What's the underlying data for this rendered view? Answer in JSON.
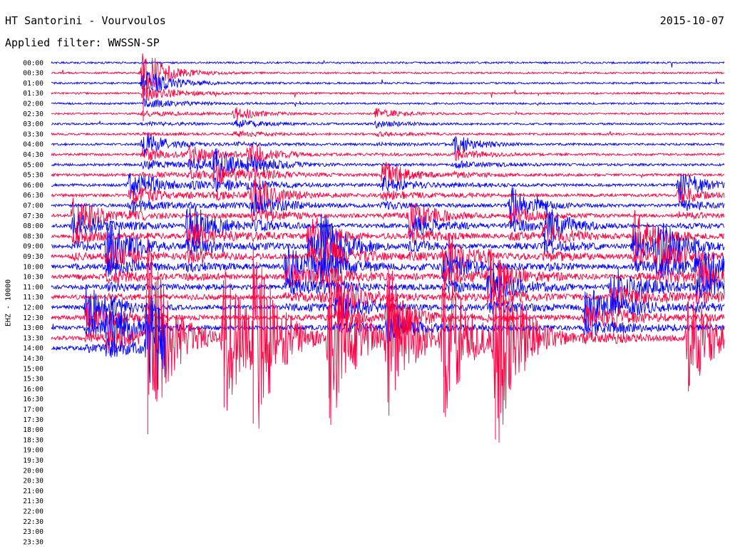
{
  "header": {
    "station": "HT Santorini - Vourvoulos",
    "date": "2015-10-07",
    "filter_text": "Applied filter: WWSSN-SP",
    "channel_label": "EHZ - 10000"
  },
  "colors": {
    "even_row": "#0000ff",
    "odd_row": "#ff0040",
    "text": "#000000",
    "background": "#ffffff"
  },
  "chart_data": {
    "type": "line",
    "title": "HT Santorini - Vourvoulos",
    "subtitle": "Applied filter: WWSSN-SP",
    "ylabel": "EHZ - 10000",
    "row_labels": [
      "00:00",
      "00:30",
      "01:00",
      "01:30",
      "02:00",
      "02:30",
      "03:00",
      "03:30",
      "04:00",
      "04:30",
      "05:00",
      "05:30",
      "06:00",
      "06:30",
      "07:00",
      "07:30",
      "08:00",
      "08:30",
      "09:00",
      "09:30",
      "10:00",
      "10:30",
      "11:00",
      "11:30",
      "12:00",
      "12:30",
      "13:00",
      "13:30",
      "14:00",
      "14:30",
      "15:00",
      "15:30",
      "16:00",
      "16:30",
      "17:00",
      "17:30",
      "18:00",
      "18:30",
      "19:00",
      "19:30",
      "20:00",
      "20:30",
      "21:00",
      "21:30",
      "22:00",
      "22:30",
      "23:00",
      "23:30"
    ],
    "row_minutes": 30,
    "rows_with_data": 29,
    "last_row_fraction": 0.17,
    "events": [
      {
        "row": 1,
        "minute": 4.1,
        "amplitude": 4.5
      },
      {
        "row": 5,
        "minute": 8.2,
        "amplitude": 1.2
      },
      {
        "row": 5,
        "minute": 14.5,
        "amplitude": 1.0
      },
      {
        "row": 8,
        "minute": 4.1,
        "amplitude": 1.8
      },
      {
        "row": 8,
        "minute": 18.0,
        "amplitude": 1.4
      },
      {
        "row": 9,
        "minute": 6.2,
        "amplitude": 1.5
      },
      {
        "row": 9,
        "minute": 8.8,
        "amplitude": 1.6
      },
      {
        "row": 10,
        "minute": 7.3,
        "amplitude": 2.0
      },
      {
        "row": 11,
        "minute": 14.8,
        "amplitude": 1.8
      },
      {
        "row": 12,
        "minute": 3.5,
        "amplitude": 2.0
      },
      {
        "row": 12,
        "minute": 28.0,
        "amplitude": 1.9
      },
      {
        "row": 13,
        "minute": 9.0,
        "amplitude": 2.2
      },
      {
        "row": 14,
        "minute": 20.5,
        "amplitude": 2.0
      },
      {
        "row": 15,
        "minute": 1.0,
        "amplitude": 2.5
      },
      {
        "row": 15,
        "minute": 16.0,
        "amplitude": 2.2
      },
      {
        "row": 16,
        "minute": 6.1,
        "amplitude": 2.6
      },
      {
        "row": 16,
        "minute": 22.0,
        "amplitude": 2.1
      },
      {
        "row": 17,
        "minute": 11.5,
        "amplitude": 2.3
      },
      {
        "row": 17,
        "minute": 26.0,
        "amplitude": 2.4
      },
      {
        "row": 18,
        "minute": 2.5,
        "amplitude": 2.8
      },
      {
        "row": 18,
        "minute": 12.0,
        "amplitude": 2.6
      },
      {
        "row": 18,
        "minute": 27.0,
        "amplitude": 2.5
      },
      {
        "row": 19,
        "minute": 17.5,
        "amplitude": 2.4
      },
      {
        "row": 20,
        "minute": 10.5,
        "amplitude": 2.1
      },
      {
        "row": 20,
        "minute": 28.8,
        "amplitude": 2.6
      },
      {
        "row": 21,
        "minute": 19.5,
        "amplitude": 2.3
      },
      {
        "row": 22,
        "minute": 25.0,
        "amplitude": 2.0
      },
      {
        "row": 23,
        "minute": 12.7,
        "amplitude": 2.1
      },
      {
        "row": 24,
        "minute": 1.6,
        "amplitude": 2.4
      },
      {
        "row": 24,
        "minute": 23.8,
        "amplitude": 2.0
      },
      {
        "row": 25,
        "minute": 15.0,
        "amplitude": 2.2
      },
      {
        "row": 26,
        "minute": 2.5,
        "amplitude": 2.0
      },
      {
        "row": 27,
        "minute": 4.3,
        "amplitude": 9.0
      },
      {
        "row": 27,
        "minute": 7.7,
        "amplitude": 6.5
      },
      {
        "row": 27,
        "minute": 9.0,
        "amplitude": 8.0
      },
      {
        "row": 27,
        "minute": 12.4,
        "amplitude": 7.5
      },
      {
        "row": 27,
        "minute": 15.0,
        "amplitude": 5.5
      },
      {
        "row": 27,
        "minute": 17.5,
        "amplitude": 7.0
      },
      {
        "row": 27,
        "minute": 19.8,
        "amplitude": 9.5
      },
      {
        "row": 27,
        "minute": 28.4,
        "amplitude": 5.0
      }
    ]
  }
}
